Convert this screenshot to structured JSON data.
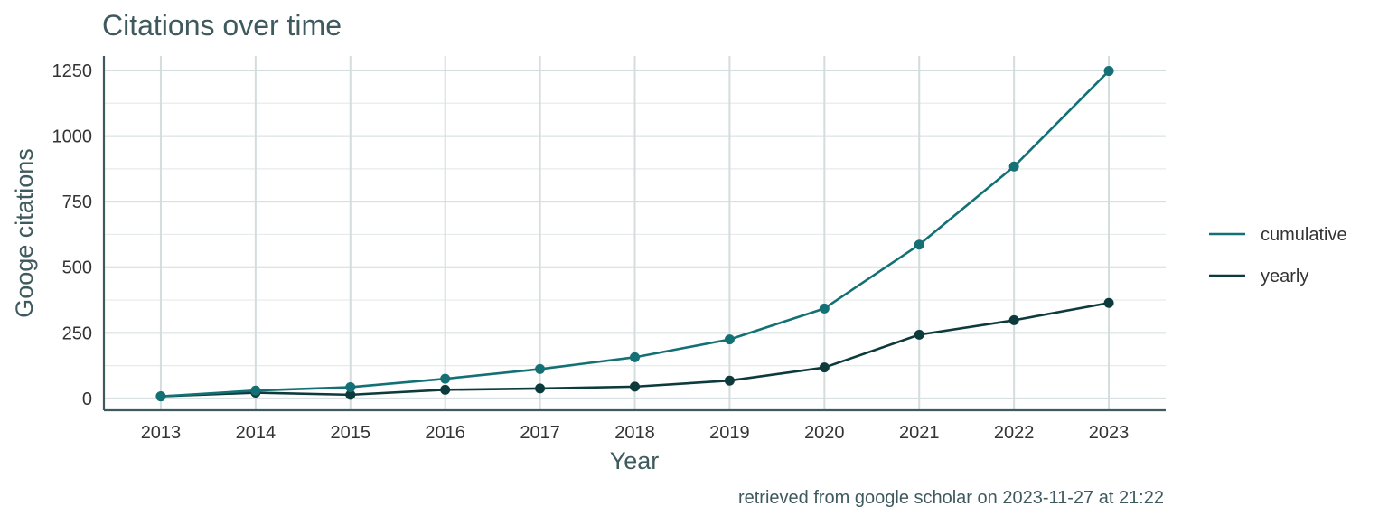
{
  "chart_data": {
    "type": "line",
    "title": "Citations over time",
    "xlabel": "Year",
    "ylabel": "Googe citations",
    "caption": "retrieved from google scholar on 2023-11-27 at 21:22",
    "x": [
      2013,
      2014,
      2015,
      2016,
      2017,
      2018,
      2019,
      2020,
      2021,
      2022,
      2023
    ],
    "x_tick_labels": [
      "2013",
      "2014",
      "2015",
      "2016",
      "2017",
      "2018",
      "2019",
      "2020",
      "2021",
      "2022",
      "2023"
    ],
    "y_ticks": [
      0,
      250,
      500,
      750,
      1000,
      1250
    ],
    "y_tick_labels": [
      "0",
      "250",
      "500",
      "750",
      "1000",
      "1250"
    ],
    "xlim": [
      2012.4,
      2023.6
    ],
    "ylim": [
      -45,
      1305
    ],
    "grid": true,
    "legend_position": "right",
    "series": [
      {
        "name": "cumulative",
        "color": "#137074",
        "values": [
          8,
          30,
          43,
          75,
          112,
          157,
          225,
          343,
          586,
          884,
          1248
        ]
      },
      {
        "name": "yearly",
        "color": "#0d3b3c",
        "values": [
          8,
          22,
          14,
          33,
          38,
          45,
          68,
          118,
          243,
          298,
          364
        ]
      }
    ]
  }
}
